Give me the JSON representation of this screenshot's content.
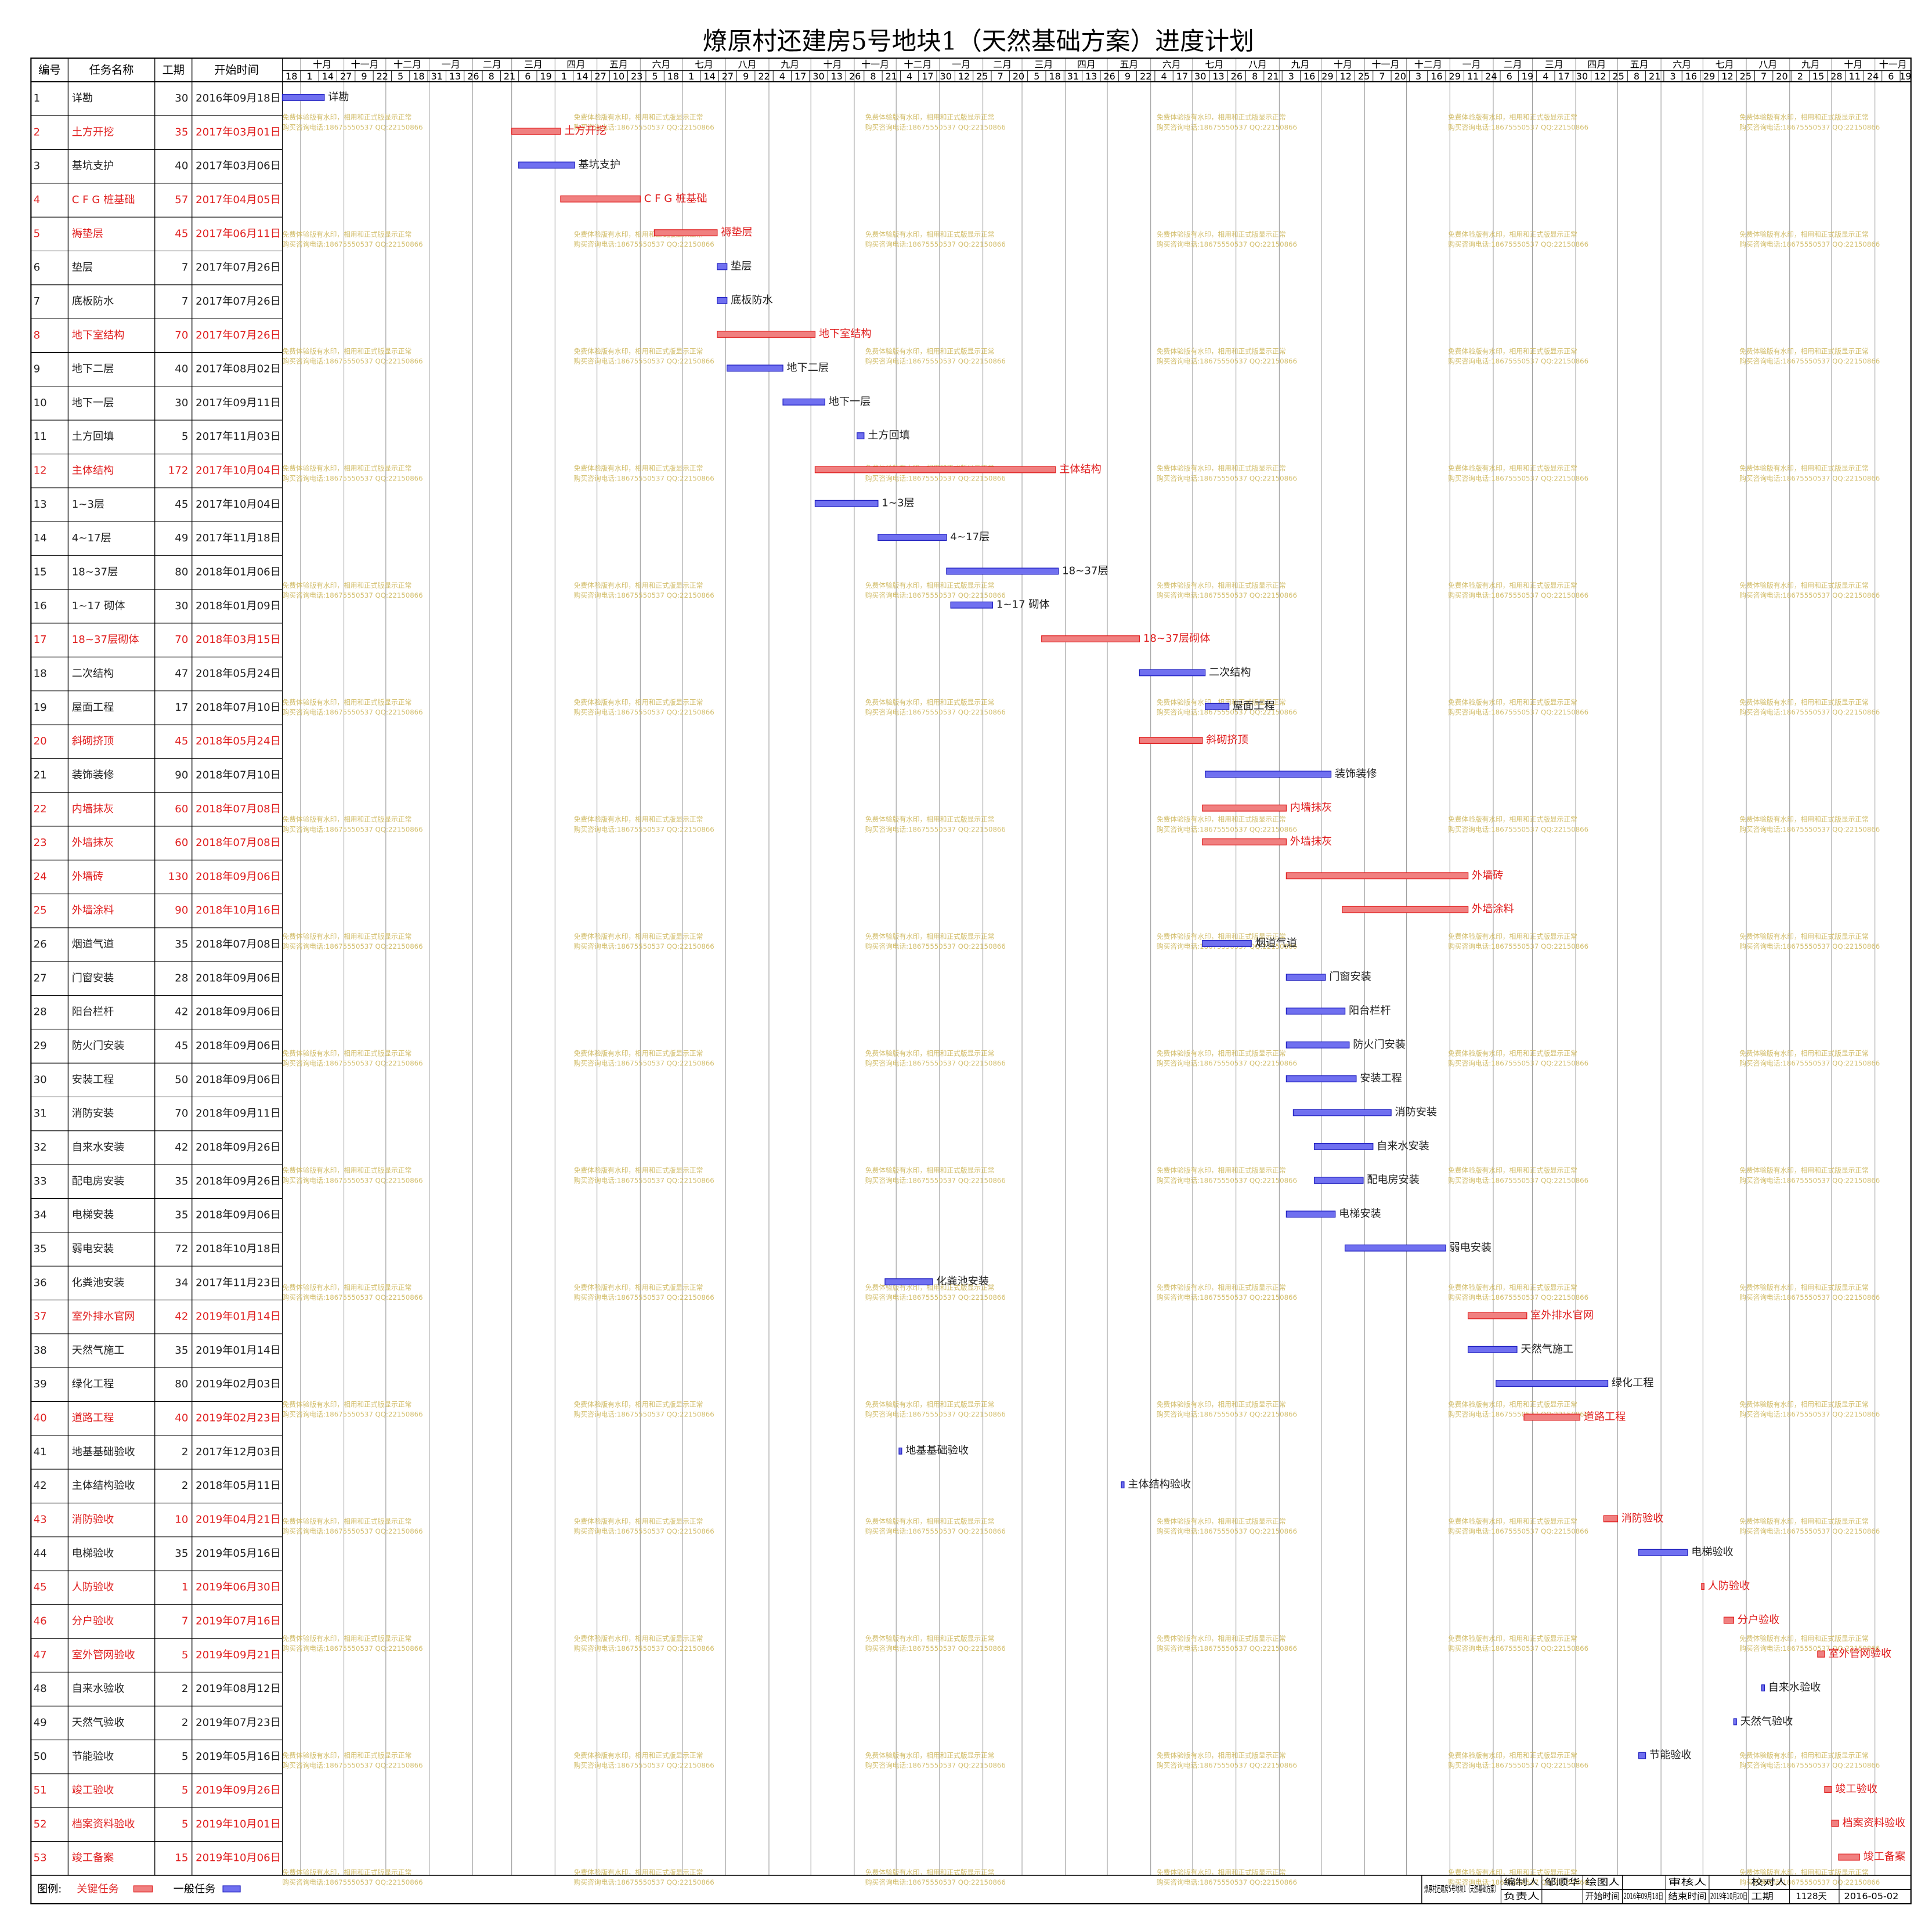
{
  "title": "燎原村还建房5号地块1（天然基础方案）进度计划",
  "header": {
    "id": "编号",
    "name": "任务名称",
    "duration": "工期",
    "start": "开始时间"
  },
  "colors": {
    "critical": "#f08080",
    "critical_text": "#e02020",
    "normal": "#7070f0",
    "normal_text": "#222222"
  },
  "months": [
    "十月",
    "十一月",
    "十二月",
    "一月",
    "二月",
    "三月",
    "四月",
    "五月",
    "六月",
    "七月",
    "八月",
    "九月",
    "十月",
    "十一月",
    "十二月",
    "一月",
    "二月",
    "三月",
    "四月",
    "五月",
    "六月",
    "七月",
    "八月",
    "九月",
    "十月",
    "十一月",
    "十二月",
    "一月",
    "二月",
    "三月",
    "四月",
    "五月",
    "六月",
    "七月",
    "八月",
    "九月",
    "十月",
    "十一月"
  ],
  "day_ticks": [
    18,
    1,
    14,
    27,
    9,
    22,
    5,
    18,
    31,
    13,
    26,
    8,
    21,
    6,
    19,
    1,
    14,
    27,
    10,
    23,
    5,
    18,
    1,
    14,
    27,
    9,
    22,
    4,
    17,
    30,
    13,
    26,
    8,
    21,
    4,
    17,
    30,
    12,
    25,
    7,
    20,
    5,
    18,
    31,
    13,
    26,
    9,
    22,
    4,
    17,
    30,
    13,
    26,
    8,
    21,
    3,
    16,
    29,
    12,
    25,
    7,
    20,
    3,
    16,
    29,
    11,
    24,
    6,
    19,
    4,
    17,
    30,
    12,
    25,
    8,
    21,
    3,
    16,
    29,
    12,
    25,
    7,
    20,
    2,
    15,
    28,
    11,
    24,
    6,
    19
  ],
  "tasks": [
    {
      "id": 1,
      "name": "详勘",
      "duration": 30,
      "start": "2016年09月18日",
      "critical": false
    },
    {
      "id": 2,
      "name": "土方开挖",
      "duration": 35,
      "start": "2017年03月01日",
      "critical": true
    },
    {
      "id": 3,
      "name": "基坑支护",
      "duration": 40,
      "start": "2017年03月06日",
      "critical": false
    },
    {
      "id": 4,
      "name": "C F G 桩基础",
      "duration": 57,
      "start": "2017年04月05日",
      "critical": true
    },
    {
      "id": 5,
      "name": "褥垫层",
      "duration": 45,
      "start": "2017年06月11日",
      "critical": true
    },
    {
      "id": 6,
      "name": "垫层",
      "duration": 7,
      "start": "2017年07月26日",
      "critical": false
    },
    {
      "id": 7,
      "name": "底板防水",
      "duration": 7,
      "start": "2017年07月26日",
      "critical": false
    },
    {
      "id": 8,
      "name": "地下室结构",
      "duration": 70,
      "start": "2017年07月26日",
      "critical": true
    },
    {
      "id": 9,
      "name": "地下二层",
      "duration": 40,
      "start": "2017年08月02日",
      "critical": false
    },
    {
      "id": 10,
      "name": "地下一层",
      "duration": 30,
      "start": "2017年09月11日",
      "critical": false
    },
    {
      "id": 11,
      "name": "土方回填",
      "duration": 5,
      "start": "2017年11月03日",
      "critical": false
    },
    {
      "id": 12,
      "name": "主体结构",
      "duration": 172,
      "start": "2017年10月04日",
      "critical": true
    },
    {
      "id": 13,
      "name": "1~3层",
      "duration": 45,
      "start": "2017年10月04日",
      "critical": false
    },
    {
      "id": 14,
      "name": "4~17层",
      "duration": 49,
      "start": "2017年11月18日",
      "critical": false
    },
    {
      "id": 15,
      "name": "18~37层",
      "duration": 80,
      "start": "2018年01月06日",
      "critical": false
    },
    {
      "id": 16,
      "name": "1~17 砌体",
      "duration": 30,
      "start": "2018年01月09日",
      "critical": false
    },
    {
      "id": 17,
      "name": "18~37层砌体",
      "duration": 70,
      "start": "2018年03月15日",
      "critical": true
    },
    {
      "id": 18,
      "name": "二次结构",
      "duration": 47,
      "start": "2018年05月24日",
      "critical": false
    },
    {
      "id": 19,
      "name": "屋面工程",
      "duration": 17,
      "start": "2018年07月10日",
      "critical": false
    },
    {
      "id": 20,
      "name": "斜砌挤顶",
      "duration": 45,
      "start": "2018年05月24日",
      "critical": true
    },
    {
      "id": 21,
      "name": "装饰装修",
      "duration": 90,
      "start": "2018年07月10日",
      "critical": false
    },
    {
      "id": 22,
      "name": "内墙抹灰",
      "duration": 60,
      "start": "2018年07月08日",
      "critical": true
    },
    {
      "id": 23,
      "name": "外墙抹灰",
      "duration": 60,
      "start": "2018年07月08日",
      "critical": true
    },
    {
      "id": 24,
      "name": "外墙砖",
      "duration": 130,
      "start": "2018年09月06日",
      "critical": true
    },
    {
      "id": 25,
      "name": "外墙涂料",
      "duration": 90,
      "start": "2018年10月16日",
      "critical": true
    },
    {
      "id": 26,
      "name": "烟道气道",
      "duration": 35,
      "start": "2018年07月08日",
      "critical": false
    },
    {
      "id": 27,
      "name": "门窗安装",
      "duration": 28,
      "start": "2018年09月06日",
      "critical": false
    },
    {
      "id": 28,
      "name": "阳台栏杆",
      "duration": 42,
      "start": "2018年09月06日",
      "critical": false
    },
    {
      "id": 29,
      "name": "防火门安装",
      "duration": 45,
      "start": "2018年09月06日",
      "critical": false
    },
    {
      "id": 30,
      "name": "安装工程",
      "duration": 50,
      "start": "2018年09月06日",
      "critical": false
    },
    {
      "id": 31,
      "name": "消防安装",
      "duration": 70,
      "start": "2018年09月11日",
      "critical": false
    },
    {
      "id": 32,
      "name": "自来水安装",
      "duration": 42,
      "start": "2018年09月26日",
      "critical": false
    },
    {
      "id": 33,
      "name": "配电房安装",
      "duration": 35,
      "start": "2018年09月26日",
      "critical": false
    },
    {
      "id": 34,
      "name": "电梯安装",
      "duration": 35,
      "start": "2018年09月06日",
      "critical": false
    },
    {
      "id": 35,
      "name": "弱电安装",
      "duration": 72,
      "start": "2018年10月18日",
      "critical": false
    },
    {
      "id": 36,
      "name": "化粪池安装",
      "duration": 34,
      "start": "2017年11月23日",
      "critical": false
    },
    {
      "id": 37,
      "name": "室外排水官网",
      "duration": 42,
      "start": "2019年01月14日",
      "critical": true
    },
    {
      "id": 38,
      "name": "天然气施工",
      "duration": 35,
      "start": "2019年01月14日",
      "critical": false
    },
    {
      "id": 39,
      "name": "绿化工程",
      "duration": 80,
      "start": "2019年02月03日",
      "critical": false
    },
    {
      "id": 40,
      "name": "道路工程",
      "duration": 40,
      "start": "2019年02月23日",
      "critical": true
    },
    {
      "id": 41,
      "name": "地基基础验收",
      "duration": 2,
      "start": "2017年12月03日",
      "critical": false
    },
    {
      "id": 42,
      "name": "主体结构验收",
      "duration": 2,
      "start": "2018年05月11日",
      "critical": false
    },
    {
      "id": 43,
      "name": "消防验收",
      "duration": 10,
      "start": "2019年04月21日",
      "critical": true
    },
    {
      "id": 44,
      "name": "电梯验收",
      "duration": 35,
      "start": "2019年05月16日",
      "critical": false
    },
    {
      "id": 45,
      "name": "人防验收",
      "duration": 1,
      "start": "2019年06月30日",
      "critical": true
    },
    {
      "id": 46,
      "name": "分户验收",
      "duration": 7,
      "start": "2019年07月16日",
      "critical": true
    },
    {
      "id": 47,
      "name": "室外管网验收",
      "duration": 5,
      "start": "2019年09月21日",
      "critical": true
    },
    {
      "id": 48,
      "name": "自来水验收",
      "duration": 2,
      "start": "2019年08月12日",
      "critical": false
    },
    {
      "id": 49,
      "name": "天然气验收",
      "duration": 2,
      "start": "2019年07月23日",
      "critical": false
    },
    {
      "id": 50,
      "name": "节能验收",
      "duration": 5,
      "start": "2019年05月16日",
      "critical": false
    },
    {
      "id": 51,
      "name": "竣工验收",
      "duration": 5,
      "start": "2019年09月26日",
      "critical": true
    },
    {
      "id": 52,
      "name": "档案资料验收",
      "duration": 5,
      "start": "2019年10月01日",
      "critical": true
    },
    {
      "id": 53,
      "name": "竣工备案",
      "duration": 15,
      "start": "2019年10月06日",
      "critical": true
    }
  ],
  "watermark": [
    "免费体验版有水印，相用和正式版显示正常",
    "购买咨询电话:18675550537 QQ:22150866"
  ],
  "legend": {
    "label": "图例:",
    "critical": "关键任务",
    "normal": "一般任务"
  },
  "footer": {
    "project": "燎原村还建房5号地块1（天然基础方案）",
    "compiler_label": "编制人",
    "compiler": "邹顺华",
    "drawer_label": "绘图人",
    "owner_label": "负责人",
    "start_label": "开始时间",
    "start": "2016年09月18日",
    "reviewer_label": "审核人",
    "end_label": "结束时间",
    "end": "2019年10月20日",
    "checker_label": "校对人",
    "period_label": "工期",
    "period": "1128天",
    "date": "2016-05-02"
  }
}
